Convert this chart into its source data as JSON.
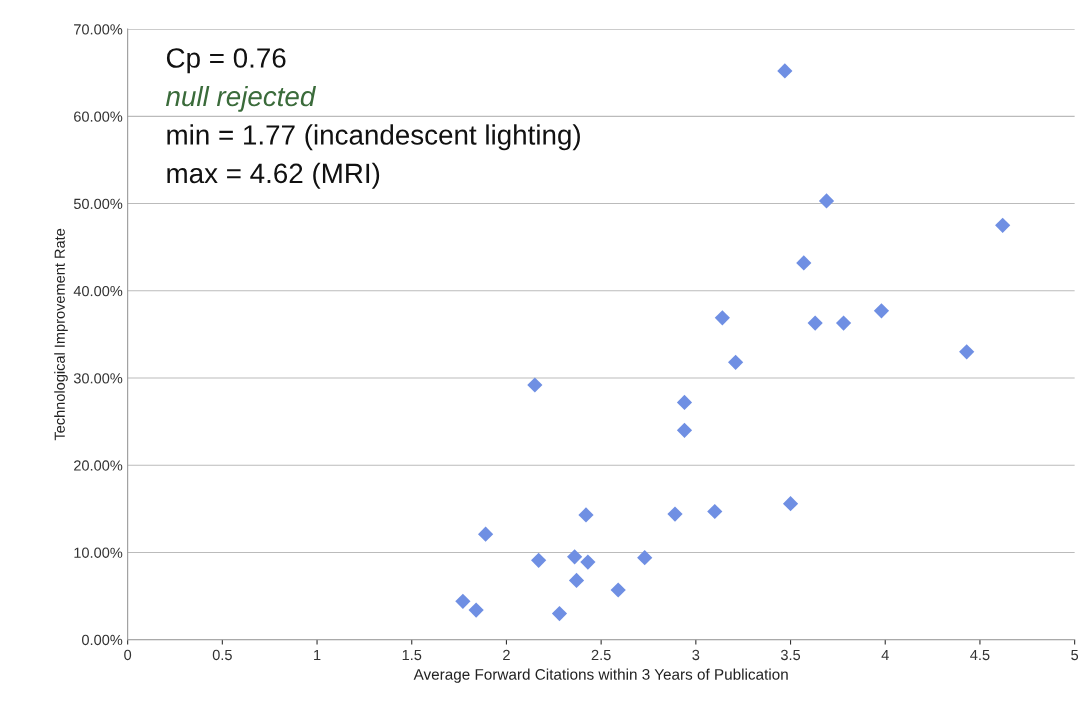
{
  "chart_data": {
    "type": "scatter",
    "xlabel": "Average Forward Citations within 3 Years of Publication",
    "ylabel": "Technological Improvement Rate",
    "annotations": [
      "Cp = 0.76",
      "null rejected",
      "min = 1.77 (incandescent lighting)",
      "max = 4.62 (MRI)"
    ],
    "series": [
      {
        "color": "#6f8fe3",
        "x": [
          3.47,
          3.69,
          4.62,
          3.57,
          3.14,
          3.63,
          3.78,
          3.98,
          4.43,
          3.21,
          3.5,
          2.15,
          2.94,
          2.94,
          1.89,
          2.42,
          2.89,
          3.1,
          2.17,
          2.36,
          2.43,
          2.73,
          2.37,
          2.59,
          1.77,
          1.84,
          2.28
        ],
        "values": [
          65.2,
          50.3,
          47.5,
          43.2,
          36.9,
          36.3,
          36.3,
          37.7,
          33.0,
          31.8,
          15.6,
          29.2,
          27.2,
          24.0,
          12.1,
          14.3,
          14.4,
          14.7,
          9.1,
          9.5,
          8.9,
          9.4,
          6.8,
          5.7,
          4.4,
          3.4,
          3.0
        ]
      }
    ],
    "xlim": [
      0,
      5
    ],
    "xticks": [
      0,
      0.5,
      1,
      1.5,
      2,
      2.5,
      3,
      3.5,
      4,
      4.5,
      5
    ],
    "ylim": [
      0,
      70
    ],
    "yticks": [
      {
        "value": 0,
        "label": "0.00%"
      },
      {
        "value": 10,
        "label": "10.00%"
      },
      {
        "value": 20,
        "label": "20.00%"
      },
      {
        "value": 30,
        "label": "30.00%"
      },
      {
        "value": 40,
        "label": "40.00%"
      },
      {
        "value": 50,
        "label": "50.00%"
      },
      {
        "value": 60,
        "label": "60.00%"
      },
      {
        "value": 70,
        "label": "70.00%"
      }
    ],
    "grid": "y",
    "marker": "diamond"
  }
}
